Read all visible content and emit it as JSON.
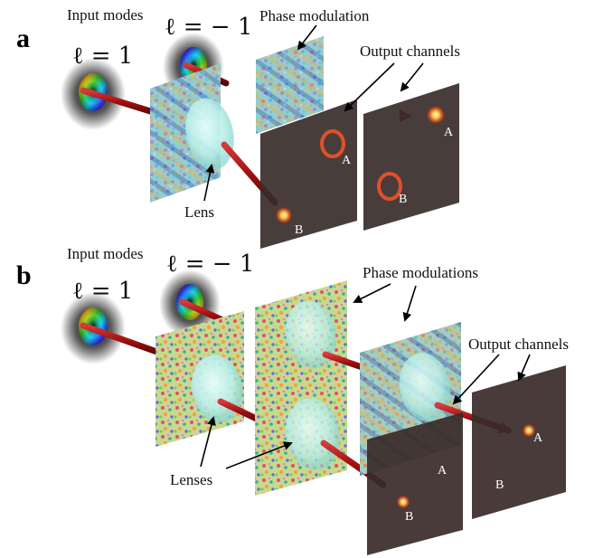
{
  "panel_a": {
    "letter": "a",
    "input_modes_label": "Input modes",
    "mode_plus": "ℓ = 1",
    "mode_minus": "ℓ = − 1",
    "phase_label": "Phase modulation",
    "output_label": "Output channels",
    "lens_label": "Lens",
    "channel_a": "A",
    "channel_b": "B"
  },
  "panel_b": {
    "letter": "b",
    "input_modes_label": "Input modes",
    "mode_plus": "ℓ = 1",
    "mode_minus": "ℓ = − 1",
    "phase_label": "Phase modulations",
    "output_label": "Output channels",
    "lens_label": "Lenses",
    "channel_a": "A",
    "channel_b": "B"
  },
  "colors": {
    "beam": "#a01010",
    "screen": "#3a2c2a",
    "lens": "#bff2ee",
    "spot": "#ffcc66"
  }
}
